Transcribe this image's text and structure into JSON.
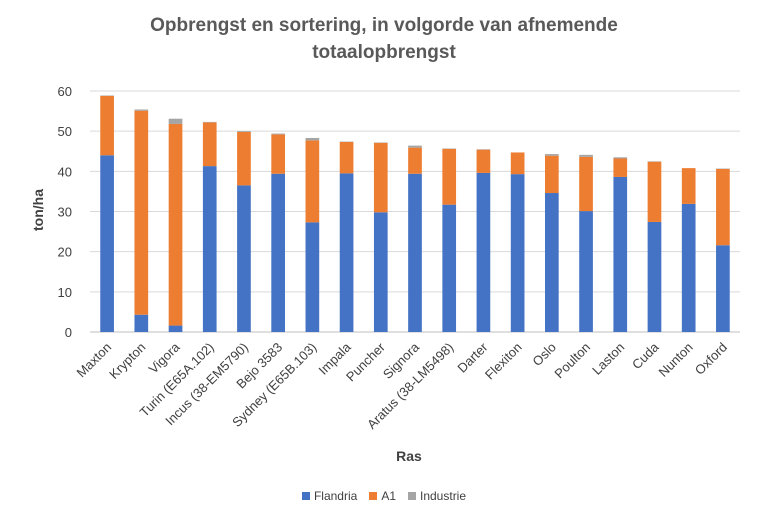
{
  "chart_data": {
    "type": "bar",
    "stacked": true,
    "title_line1": "Opbrengst en sortering, in volgorde van afnemende",
    "title_line2": "totaalopbrengst",
    "xlabel": "Ras",
    "ylabel": "ton/ha",
    "ylim": [
      0,
      60
    ],
    "yticks": [
      "0",
      "10",
      "20",
      "30",
      "40",
      "50",
      "60"
    ],
    "grid": true,
    "legend_position": "bottom",
    "categories": [
      "Maxton",
      "Krypton",
      "Vigora",
      "Turin (E65A.102)",
      "Incus (38-EM5790)",
      "Bejo 3583",
      "Sydney (E65B.103)",
      "Impala",
      "Puncher",
      "Signora",
      "Aratus (38-LM5498)",
      "Darter",
      "Flexiton",
      "Oslo",
      "Poulton",
      "Laston",
      "Cuda",
      "Nunton",
      "Oxford"
    ],
    "series": [
      {
        "name": "Flandria",
        "color": "#4472C4",
        "values": [
          44,
          4.3,
          1.6,
          41.3,
          36.5,
          39.4,
          27.3,
          39.5,
          29.8,
          39.4,
          31.7,
          39.6,
          39.3,
          34.6,
          30.1,
          38.6,
          27.4,
          31.9,
          21.6
        ]
      },
      {
        "name": "A1",
        "color": "#ED7D31",
        "values": [
          14.8,
          50.8,
          50.2,
          10.9,
          13.3,
          9.8,
          20.4,
          7.8,
          17.3,
          6.5,
          13.9,
          5.8,
          5.4,
          9.3,
          13.5,
          4.6,
          15,
          8.9,
          19
        ]
      },
      {
        "name": "Industrie",
        "color": "#A5A5A5",
        "values": [
          0.1,
          0.3,
          1.3,
          0.1,
          0.2,
          0.2,
          0.6,
          0.1,
          0.1,
          0.5,
          0.1,
          0.1,
          0,
          0.4,
          0.5,
          0.3,
          0.1,
          0,
          0.1
        ]
      }
    ]
  }
}
